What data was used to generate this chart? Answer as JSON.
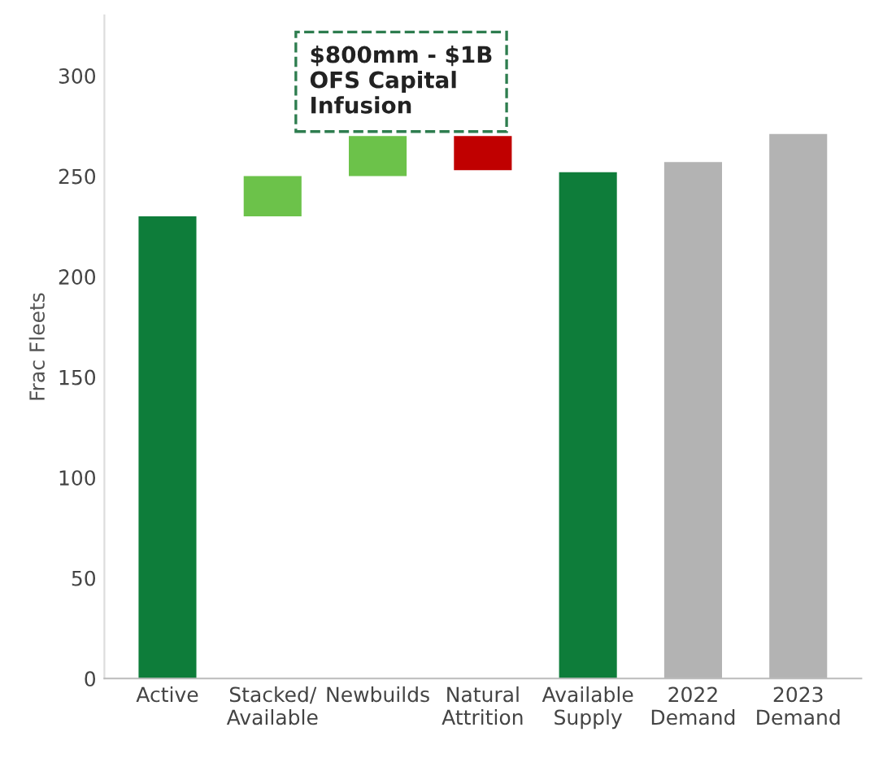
{
  "chart_data": {
    "type": "bar",
    "ylabel": "Frac Fleets",
    "categories": [
      "Active",
      "Stacked/\nAvailable",
      "Newbuilds",
      "Natural\nAttrition",
      "Available\nSupply",
      "2022\nDemand",
      "2023\nDemand"
    ],
    "values": [
      230,
      20,
      20,
      17,
      252,
      257,
      271
    ],
    "base": [
      0,
      230,
      250,
      253,
      0,
      0,
      0
    ],
    "colors": [
      "#0e7d3a",
      "#6cc24a",
      "#6cc24a",
      "#c00000",
      "#0e7d3a",
      "#b3b3b3",
      "#b3b3b3"
    ],
    "ylim": [
      0,
      330
    ],
    "yticks": [
      0,
      50,
      100,
      150,
      200,
      250,
      300
    ],
    "grid": false,
    "legend": false,
    "annotations": [
      "$800mm - $1B\nOFS Capital\nInfusion"
    ]
  }
}
